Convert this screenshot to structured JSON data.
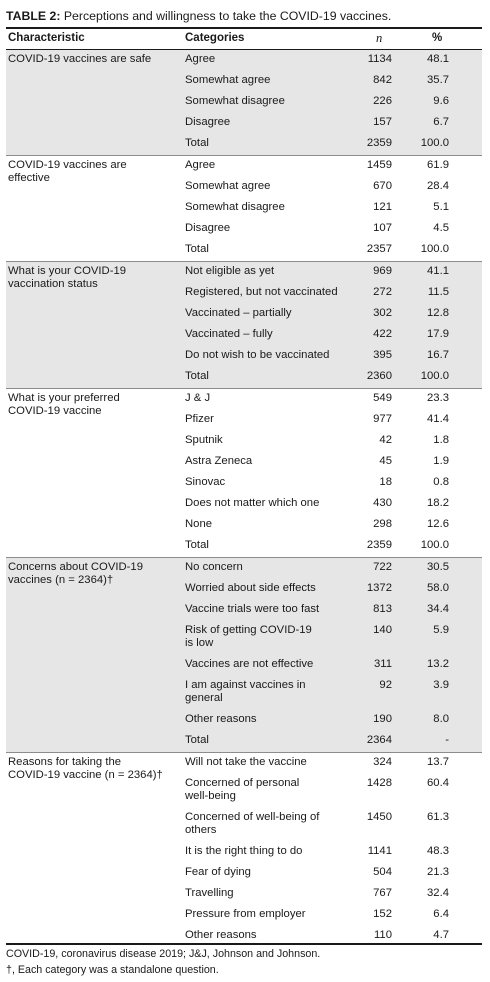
{
  "table": {
    "label": "TABLE 2:",
    "caption": "Perceptions and willingness to take the COVID-19 vaccines.",
    "headers": {
      "characteristic": "Characteristic",
      "categories": "Categories",
      "n": "n",
      "percent": "%"
    },
    "groups": [
      {
        "characteristic": [
          "COVID-19 vaccines are safe"
        ],
        "shaded": true,
        "rows": [
          {
            "category": [
              "Agree"
            ],
            "n": "1134",
            "pct": "48.1"
          },
          {
            "category": [
              "Somewhat agree"
            ],
            "n": "842",
            "pct": "35.7"
          },
          {
            "category": [
              "Somewhat disagree"
            ],
            "n": "226",
            "pct": "9.6"
          },
          {
            "category": [
              "Disagree"
            ],
            "n": "157",
            "pct": "6.7"
          },
          {
            "category": [
              "Total"
            ],
            "n": "2359",
            "pct": "100.0"
          }
        ]
      },
      {
        "characteristic": [
          "COVID-19 vaccines are",
          "effective"
        ],
        "shaded": false,
        "rows": [
          {
            "category": [
              "Agree"
            ],
            "n": "1459",
            "pct": "61.9"
          },
          {
            "category": [
              "Somewhat agree"
            ],
            "n": "670",
            "pct": "28.4"
          },
          {
            "category": [
              "Somewhat disagree"
            ],
            "n": "121",
            "pct": "5.1"
          },
          {
            "category": [
              "Disagree"
            ],
            "n": "107",
            "pct": "4.5"
          },
          {
            "category": [
              "Total"
            ],
            "n": "2357",
            "pct": "100.0"
          }
        ]
      },
      {
        "characteristic": [
          "What is your COVID-19",
          "vaccination status"
        ],
        "shaded": true,
        "rows": [
          {
            "category": [
              "Not eligible as yet"
            ],
            "n": "969",
            "pct": "41.1"
          },
          {
            "category": [
              "Registered, but not vaccinated"
            ],
            "n": "272",
            "pct": "11.5"
          },
          {
            "category": [
              "Vaccinated – partially"
            ],
            "n": "302",
            "pct": "12.8"
          },
          {
            "category": [
              "Vaccinated – fully"
            ],
            "n": "422",
            "pct": "17.9"
          },
          {
            "category": [
              "Do not wish to be vaccinated"
            ],
            "n": "395",
            "pct": "16.7"
          },
          {
            "category": [
              "Total"
            ],
            "n": "2360",
            "pct": "100.0"
          }
        ]
      },
      {
        "characteristic": [
          "What is your preferred",
          "COVID-19 vaccine"
        ],
        "shaded": false,
        "rows": [
          {
            "category": [
              "J & J"
            ],
            "n": "549",
            "pct": "23.3"
          },
          {
            "category": [
              "Pfizer"
            ],
            "n": "977",
            "pct": "41.4"
          },
          {
            "category": [
              "Sputnik"
            ],
            "n": "42",
            "pct": "1.8"
          },
          {
            "category": [
              "Astra Zeneca"
            ],
            "n": "45",
            "pct": "1.9"
          },
          {
            "category": [
              "Sinovac"
            ],
            "n": "18",
            "pct": "0.8"
          },
          {
            "category": [
              "Does not matter which one"
            ],
            "n": "430",
            "pct": "18.2"
          },
          {
            "category": [
              "None"
            ],
            "n": "298",
            "pct": "12.6"
          },
          {
            "category": [
              "Total"
            ],
            "n": "2359",
            "pct": "100.0"
          }
        ]
      },
      {
        "characteristic": [
          "Concerns about COVID-19",
          "vaccines (n = 2364)†"
        ],
        "shaded": true,
        "rows": [
          {
            "category": [
              "No concern"
            ],
            "n": "722",
            "pct": "30.5"
          },
          {
            "category": [
              "Worried about side effects"
            ],
            "n": "1372",
            "pct": "58.0"
          },
          {
            "category": [
              "Vaccine trials were too fast"
            ],
            "n": "813",
            "pct": "34.4"
          },
          {
            "category": [
              "Risk of getting COVID-19",
              "is low"
            ],
            "n": "140",
            "pct": "5.9"
          },
          {
            "category": [
              "Vaccines are not effective"
            ],
            "n": "311",
            "pct": "13.2"
          },
          {
            "category": [
              "I am against vaccines in",
              "general"
            ],
            "n": "92",
            "pct": "3.9"
          },
          {
            "category": [
              "Other reasons"
            ],
            "n": "190",
            "pct": "8.0"
          },
          {
            "category": [
              "Total"
            ],
            "n": "2364",
            "pct": "-"
          }
        ]
      },
      {
        "characteristic": [
          "Reasons for taking the",
          "COVID-19 vaccine (n = 2364)†"
        ],
        "shaded": false,
        "rows": [
          {
            "category": [
              "Will not take the vaccine"
            ],
            "n": "324",
            "pct": "13.7"
          },
          {
            "category": [
              "Concerned of personal",
              "well-being"
            ],
            "n": "1428",
            "pct": "60.4"
          },
          {
            "category": [
              "Concerned of well-being of",
              "others"
            ],
            "n": "1450",
            "pct": "61.3"
          },
          {
            "category": [
              "It is the right thing to do"
            ],
            "n": "1141",
            "pct": "48.3"
          },
          {
            "category": [
              "Fear of dying"
            ],
            "n": "504",
            "pct": "21.3"
          },
          {
            "category": [
              "Travelling"
            ],
            "n": "767",
            "pct": "32.4"
          },
          {
            "category": [
              "Pressure from employer"
            ],
            "n": "152",
            "pct": "6.4"
          },
          {
            "category": [
              "Other reasons"
            ],
            "n": "110",
            "pct": "4.7"
          }
        ]
      }
    ],
    "footnotes": [
      "COVID-19, coronavirus disease 2019; J&J, Johnson and Johnson.",
      "†, Each category was a standalone question."
    ]
  }
}
